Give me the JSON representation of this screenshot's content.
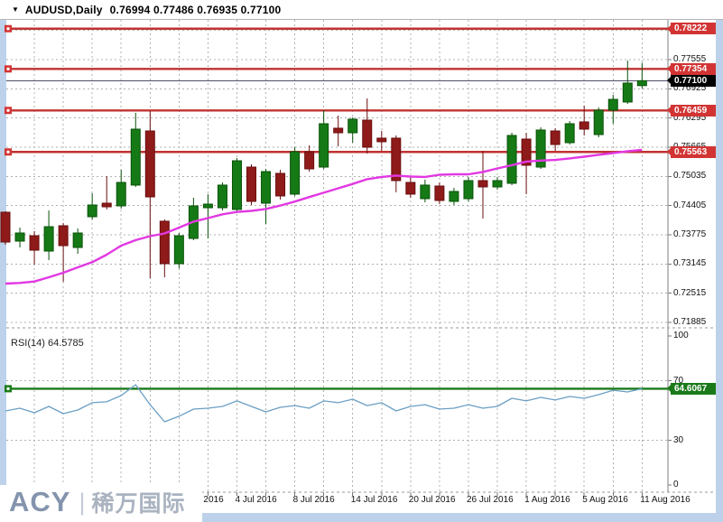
{
  "titlebar": {
    "arrow": "▼",
    "symbol": "AUDUSD,Daily",
    "ohlc": "0.76994 0.77486 0.76935 0.77100"
  },
  "logo": {
    "acy": "ACY",
    "divider": "|",
    "chinese": "稀万国际"
  },
  "colors": {
    "frame": "#bdd2ea",
    "grid": "#b0b0b0",
    "axis_line": "#808080",
    "bull_fill": "#157a15",
    "bull_border": "#0a520a",
    "bear_fill": "#8e1a1a",
    "bear_border": "#6a0f0f",
    "ma_line": "#e238e2",
    "rsi_line": "#6b9fc4",
    "red_level": "#c13232",
    "red_box": "#d23434",
    "green_level": "#1a7a1a",
    "current_price_line": "#50506a"
  },
  "chart_data": [
    {
      "type": "candlestick",
      "symbol": "AUDUSD",
      "timeframe": "Daily",
      "ohlc_display": {
        "open": "0.76994",
        "high": "0.77486",
        "low": "0.76935",
        "close": "0.77100"
      },
      "y_ticks": [
        {
          "label": "0.77555",
          "price": 0.77555
        },
        {
          "label": "0.76925",
          "price": 0.76925
        },
        {
          "label": "0.76295",
          "price": 0.76295
        },
        {
          "label": "0.75665",
          "price": 0.75665
        },
        {
          "label": "0.75035",
          "price": 0.75035
        },
        {
          "label": "0.74405",
          "price": 0.74405
        },
        {
          "label": "0.73775",
          "price": 0.73775
        },
        {
          "label": "0.73145",
          "price": 0.73145
        },
        {
          "label": "0.72515",
          "price": 0.72515
        },
        {
          "label": "0.71885",
          "price": 0.71885
        }
      ],
      "x_ticks": [
        {
          "label": "2016",
          "i": 12
        },
        {
          "label": "4 Jul 2016",
          "i": 16
        },
        {
          "label": "8 Jul 2016",
          "i": 20
        },
        {
          "label": "14 Jul 2016",
          "i": 24
        },
        {
          "label": "20 Jul 2016",
          "i": 28
        },
        {
          "label": "26 Jul 2016",
          "i": 32
        },
        {
          "label": "1 Aug 2016",
          "i": 36
        },
        {
          "label": "5 Aug 2016",
          "i": 40
        },
        {
          "label": "11 Aug 2016",
          "i": 44
        }
      ],
      "hlines": [
        {
          "label": "0.78222",
          "price": 0.78222
        },
        {
          "label": "0.77354",
          "price": 0.77354
        },
        {
          "label": "0.76459",
          "price": 0.76459
        },
        {
          "label": "0.75563",
          "price": 0.75563
        }
      ],
      "current_price": {
        "label": "0.77100",
        "price": 0.771
      },
      "candles": [
        [
          0.74263,
          0.74283,
          0.73562,
          0.7362
        ],
        [
          0.7364,
          0.73932,
          0.73503,
          0.73815
        ],
        [
          0.73756,
          0.73854,
          0.73133,
          0.73444
        ],
        [
          0.73425,
          0.74302,
          0.7323,
          0.73951
        ],
        [
          0.73971,
          0.74029,
          0.72763,
          0.73542
        ],
        [
          0.73503,
          0.73912,
          0.73367,
          0.73815
        ],
        [
          0.74166,
          0.74672,
          0.74107,
          0.74419
        ],
        [
          0.74458,
          0.75042,
          0.74322,
          0.7438
        ],
        [
          0.744,
          0.75179,
          0.74341,
          0.74906
        ],
        [
          0.74848,
          0.76406,
          0.74809,
          0.76055
        ],
        [
          0.76016,
          0.76445,
          0.72841,
          0.74594
        ],
        [
          0.74069,
          0.74107,
          0.7286,
          0.73153
        ],
        [
          0.73153,
          0.73815,
          0.73055,
          0.73756
        ],
        [
          0.73698,
          0.74575,
          0.73659,
          0.744
        ],
        [
          0.7436,
          0.74653,
          0.73698,
          0.74438
        ],
        [
          0.7436,
          0.74906,
          0.74302,
          0.74848
        ],
        [
          0.74322,
          0.75432,
          0.74263,
          0.75373
        ],
        [
          0.75237,
          0.75296,
          0.74419,
          0.74497
        ],
        [
          0.74458,
          0.75198,
          0.7401,
          0.7514
        ],
        [
          0.75101,
          0.75179,
          0.74536,
          0.74614
        ],
        [
          0.74653,
          0.75665,
          0.74614,
          0.75568
        ],
        [
          0.75568,
          0.75704,
          0.7514,
          0.75198
        ],
        [
          0.75237,
          0.76464,
          0.75198,
          0.76172
        ],
        [
          0.76075,
          0.76347,
          0.75685,
          0.75977
        ],
        [
          0.75977,
          0.76309,
          0.75763,
          0.7627
        ],
        [
          0.7625,
          0.76718,
          0.75529,
          0.75665
        ],
        [
          0.75861,
          0.76016,
          0.75587,
          0.75783
        ],
        [
          0.75861,
          0.75919,
          0.74692,
          0.74945
        ],
        [
          0.74906,
          0.75023,
          0.74575,
          0.74653
        ],
        [
          0.74555,
          0.74965,
          0.74477,
          0.74848
        ],
        [
          0.74828,
          0.74906,
          0.74438,
          0.74516
        ],
        [
          0.74497,
          0.74789,
          0.74419,
          0.74711
        ],
        [
          0.74555,
          0.75023,
          0.74497,
          0.74945
        ],
        [
          0.74945,
          0.75587,
          0.74127,
          0.74809
        ],
        [
          0.74809,
          0.75023,
          0.7475,
          0.74945
        ],
        [
          0.74887,
          0.75977,
          0.74848,
          0.75919
        ],
        [
          0.75841,
          0.75977,
          0.74653,
          0.75276
        ],
        [
          0.75237,
          0.76094,
          0.75198,
          0.76036
        ],
        [
          0.76016,
          0.76075,
          0.75587,
          0.75724
        ],
        [
          0.75763,
          0.7623,
          0.75724,
          0.76172
        ],
        [
          0.76211,
          0.76562,
          0.75919,
          0.76055
        ],
        [
          0.75938,
          0.76523,
          0.7588,
          0.76464
        ],
        [
          0.76464,
          0.76796,
          0.76172,
          0.76698
        ],
        [
          0.7664,
          0.77536,
          0.76601,
          0.77049
        ],
        [
          0.76994,
          0.77486,
          0.76935,
          0.771
        ]
      ],
      "ma": {
        "name": "Moving Average",
        "color": "magenta",
        "values": [
          0.72724,
          0.72738,
          0.72769,
          0.72861,
          0.72958,
          0.73075,
          0.73186,
          0.73348,
          0.73543,
          0.7366,
          0.73747,
          0.73806,
          0.73932,
          0.74061,
          0.74137,
          0.74219,
          0.74268,
          0.74293,
          0.74334,
          0.74408,
          0.74492,
          0.74591,
          0.74683,
          0.7478,
          0.74872,
          0.74975,
          0.75024,
          0.75053,
          0.75033,
          0.75024,
          0.75072,
          0.75082,
          0.75082,
          0.75131,
          0.75207,
          0.75277,
          0.75355,
          0.75378,
          0.7539,
          0.75423,
          0.7546,
          0.75501,
          0.75536,
          0.75579,
          0.75608
        ]
      }
    },
    {
      "type": "line",
      "indicator": "RSI(14)",
      "label": "RSI(14) 64.5785",
      "y_ticks": [
        100,
        70,
        30,
        0
      ],
      "level_line": {
        "value": 64.6067,
        "label": "64.6067"
      },
      "values": [
        49.7,
        51.5,
        48.5,
        52.7,
        47.9,
        50.3,
        55.2,
        55.8,
        60.0,
        67.3,
        53.9,
        42.4,
        46.1,
        50.9,
        51.5,
        52.7,
        56.4,
        52.7,
        49.1,
        52.1,
        53.3,
        51.5,
        56.4,
        55.2,
        57.6,
        53.3,
        55.2,
        49.7,
        52.7,
        53.9,
        50.9,
        51.5,
        53.9,
        51.5,
        52.7,
        58.2,
        56.4,
        58.8,
        57.0,
        59.4,
        58.2,
        60.6,
        63.6,
        62.4,
        64.6
      ]
    }
  ]
}
